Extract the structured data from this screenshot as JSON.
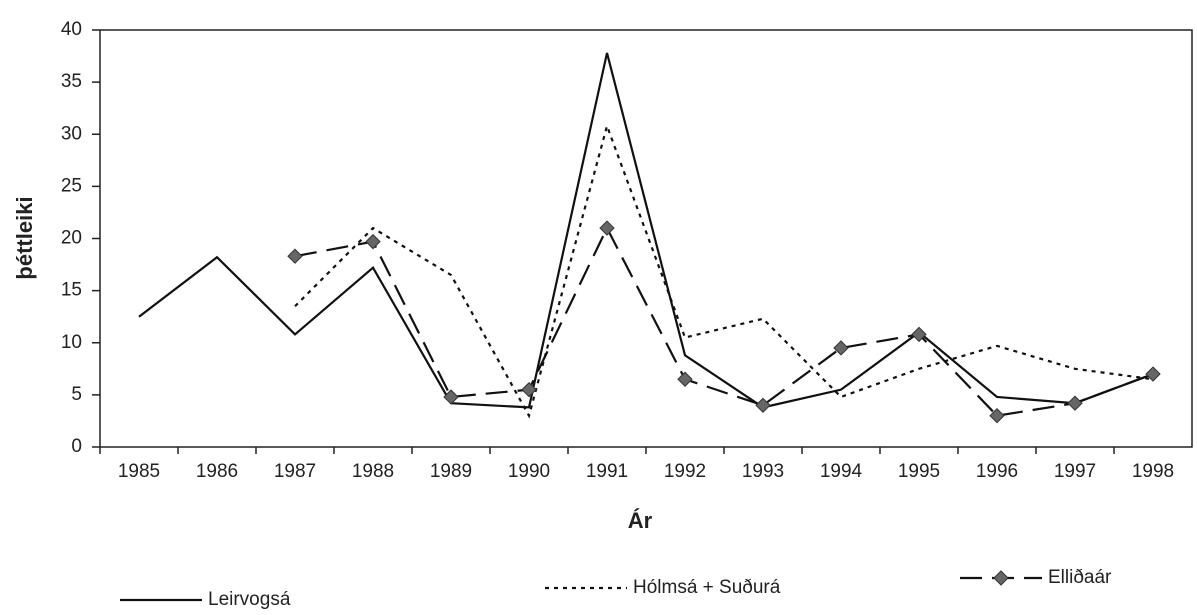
{
  "chart_data": {
    "type": "line",
    "x_label": "Ár",
    "y_label": "þéttleiki",
    "categories": [
      "1985",
      "1986",
      "1987",
      "1988",
      "1989",
      "1990",
      "1991",
      "1992",
      "1993",
      "1994",
      "1995",
      "1996",
      "1997",
      "1998"
    ],
    "series": [
      {
        "name": "Leirvogsá",
        "color": "#111111",
        "line_style": "solid",
        "values": [
          12.5,
          18.2,
          10.8,
          17.2,
          4.2,
          3.8,
          37.8,
          8.8,
          3.8,
          5.5,
          11,
          4.8,
          4.2,
          7
        ]
      },
      {
        "name": "Hólmsá + Suðurá",
        "color": "#111111",
        "line_style": "dotted",
        "values": [
          null,
          null,
          13.5,
          21,
          16.5,
          3,
          30.8,
          10.5,
          12.3,
          4.8,
          7.5,
          9.7,
          7.5,
          6.5
        ]
      },
      {
        "name": "Elliðaár",
        "color": "#111111",
        "line_style": "dashed",
        "marker": "diamond",
        "values": [
          null,
          null,
          18.3,
          19.7,
          4.8,
          5.5,
          21,
          6.5,
          4,
          9.5,
          10.8,
          3,
          4.2,
          7
        ]
      }
    ],
    "ylim": [
      0,
      40
    ],
    "yticks": [
      0,
      5,
      10,
      15,
      20,
      25,
      30,
      35,
      40
    ],
    "grid": false,
    "legend": "bottom"
  }
}
